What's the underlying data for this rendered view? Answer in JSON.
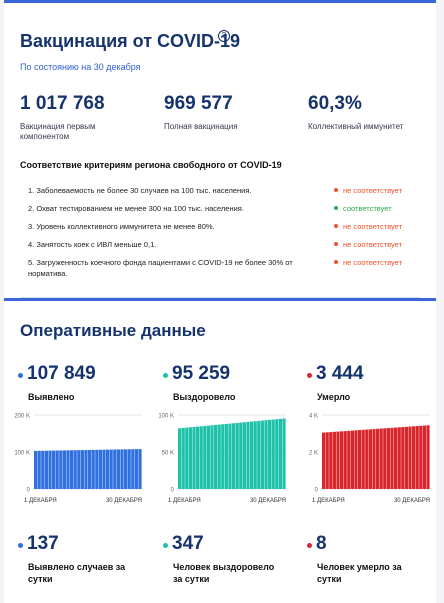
{
  "vaccination": {
    "title": "Вакцинация от COVID-19",
    "help_symbol": "?",
    "as_of": "По состоянию на 30 декабря",
    "stats": [
      {
        "value": "1 017 768",
        "label": "Вакцинация первым компонентом"
      },
      {
        "value": "969 577",
        "label": "Полная вакцинация"
      },
      {
        "value": "60,3%",
        "label": "Коллективный иммунитет"
      }
    ]
  },
  "criteria": {
    "heading": "Соответствие критериям региона свободного от COVID-19",
    "items": [
      {
        "text": "1. Заболеваемость не более 30 случаев на 100 тыс. населения.",
        "status": "не соответствует",
        "color": "#e8542b"
      },
      {
        "text": "2. Охват тестированием не менее 300 на 100 тыс. населения.",
        "status": "соответствует",
        "color": "#2fa84f"
      },
      {
        "text": "3. Уровень коллективного иммунитета не менее 80%.",
        "status": "не соответствует",
        "color": "#e8542b"
      },
      {
        "text": "4. Занятость коек с ИВЛ меньше 0,1.",
        "status": "не соответствует",
        "color": "#e8542b"
      },
      {
        "text": "5. Загруженность коечного фонда пациентами с COVID-19 не более 30% от норматива.",
        "status": "не соответствует",
        "color": "#e8542b"
      }
    ]
  },
  "operational": {
    "title": "Оперативные данные",
    "totals": [
      {
        "value": "107 849",
        "label": "Выявлено",
        "color": "#2f6fe0"
      },
      {
        "value": "95 259",
        "label": "Выздоровело",
        "color": "#1fc2a8"
      },
      {
        "value": "3 444",
        "label": "Умерло",
        "color": "#d9262c"
      }
    ],
    "daily": [
      {
        "value": "137",
        "label": "Выявлено случаев за сутки",
        "color": "#2f6fe0"
      },
      {
        "value": "347",
        "label": "Человек выздоровело за сутки",
        "color": "#1fc2a8"
      },
      {
        "value": "8",
        "label": "Человек умерло за сутки",
        "color": "#d9262c"
      }
    ]
  },
  "chart_data": [
    {
      "type": "bar",
      "color": "#2f6fe0",
      "yticks": [
        "200 K",
        "100 K",
        "0"
      ],
      "ylim": [
        0,
        200000
      ],
      "xlabels": [
        "1 ДЕКАБРЯ",
        "30 ДЕКАБРЯ"
      ],
      "start": 103000,
      "end": 107849,
      "bars": 30
    },
    {
      "type": "bar",
      "color": "#1fc2a8",
      "yticks": [
        "100 K",
        "50 K",
        "0"
      ],
      "ylim": [
        0,
        100000
      ],
      "xlabels": [
        "1 ДЕКАБРЯ",
        "30 ДЕКАБРЯ"
      ],
      "start": 82000,
      "end": 95259,
      "bars": 30
    },
    {
      "type": "bar",
      "color": "#d9262c",
      "yticks": [
        "4 K",
        "2 K",
        "0"
      ],
      "ylim": [
        0,
        4000
      ],
      "xlabels": [
        "1 ДЕКАБРЯ",
        "30 ДЕКАБРЯ"
      ],
      "start": 3050,
      "end": 3444,
      "bars": 30
    }
  ]
}
